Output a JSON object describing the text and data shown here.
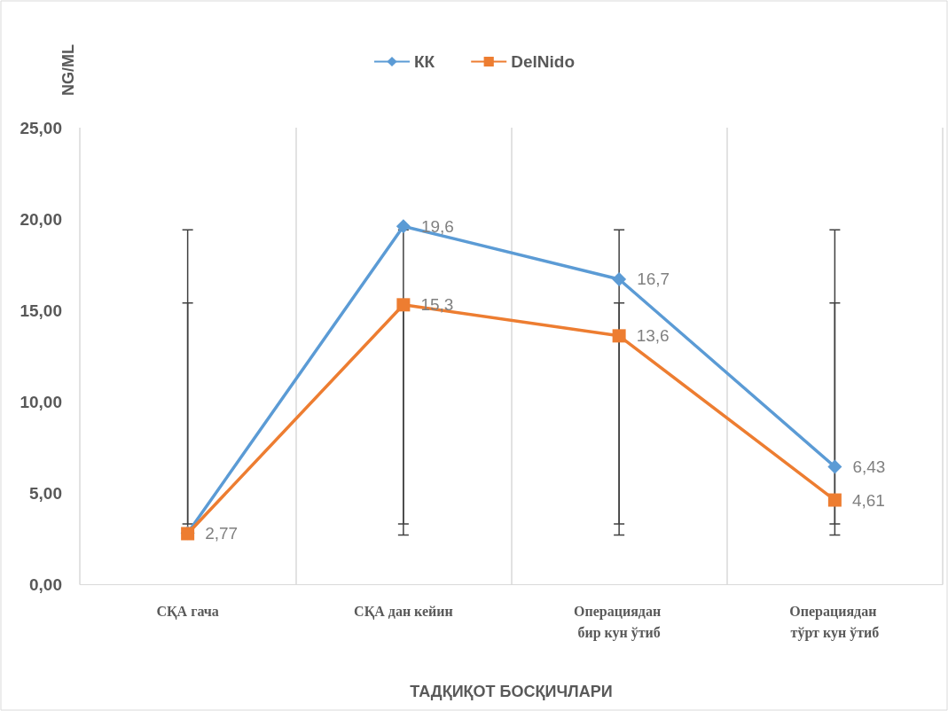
{
  "chart_data": {
    "type": "line",
    "xlabel": "ТАДҚИҚОТ БОСҚИЧЛАРИ",
    "ylabel": "NG/ML",
    "categories": [
      "СҚА гача",
      "СҚА дан кейин",
      "Операциядан бир кун ўтиб",
      "Операциядан тўрт кун ўтиб"
    ],
    "series": [
      {
        "name": "КК",
        "color": "#5b9bd5",
        "marker": "diamond",
        "values": [
          2.8,
          19.6,
          16.7,
          6.43
        ],
        "value_labels": [
          null,
          "19,6",
          "16,7",
          "6,43"
        ],
        "errors": [
          [
            3.3,
            19.4
          ],
          [
            3.3,
            19.4
          ],
          [
            3.3,
            19.4
          ],
          [
            3.3,
            19.4
          ]
        ]
      },
      {
        "name": "DelNido",
        "color": "#ed7d31",
        "marker": "square",
        "values": [
          2.77,
          15.3,
          13.6,
          4.61
        ],
        "value_labels": [
          "2,77",
          "15,3",
          "13,6",
          "4,61"
        ],
        "errors": [
          [
            2.7,
            15.4
          ],
          [
            2.7,
            15.3
          ],
          [
            2.7,
            15.4
          ],
          [
            2.7,
            15.4
          ]
        ]
      }
    ],
    "ylim": [
      0,
      25
    ],
    "yticks": [
      {
        "value": 0,
        "label": "0,00"
      },
      {
        "value": 5,
        "label": "5,00"
      },
      {
        "value": 10,
        "label": "10,00"
      },
      {
        "value": 15,
        "label": "15,00"
      },
      {
        "value": 20,
        "label": "20,00"
      },
      {
        "value": 25,
        "label": "25,00"
      }
    ],
    "grid": "x",
    "legend": "top",
    "line_style": "solid"
  }
}
